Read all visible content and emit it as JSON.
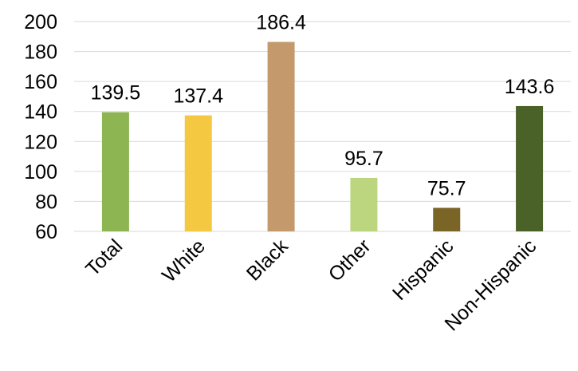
{
  "chart_data": {
    "type": "bar",
    "title": "",
    "xlabel": "",
    "ylabel": "",
    "categories": [
      "Total",
      "White",
      "Black",
      "Other",
      "Hispanic",
      "Non-Hispanic"
    ],
    "values": [
      139.5,
      137.4,
      186.4,
      95.7,
      75.7,
      143.6
    ],
    "data_labels": [
      "139.5",
      "137.4",
      "186.4",
      "95.7",
      "75.7",
      "143.6"
    ],
    "colors": [
      "#8db552",
      "#f5c842",
      "#c49a6c",
      "#bcd67f",
      "#7a6527",
      "#4a6128"
    ],
    "ylim": [
      60,
      200
    ],
    "yticks": [
      60,
      80,
      100,
      120,
      140,
      160,
      180,
      200
    ],
    "ytick_labels": [
      "60",
      "80",
      "100",
      "120",
      "140",
      "160",
      "180",
      "200"
    ],
    "grid": true,
    "gridline_color": "#d9d9d9",
    "legend": "none"
  }
}
